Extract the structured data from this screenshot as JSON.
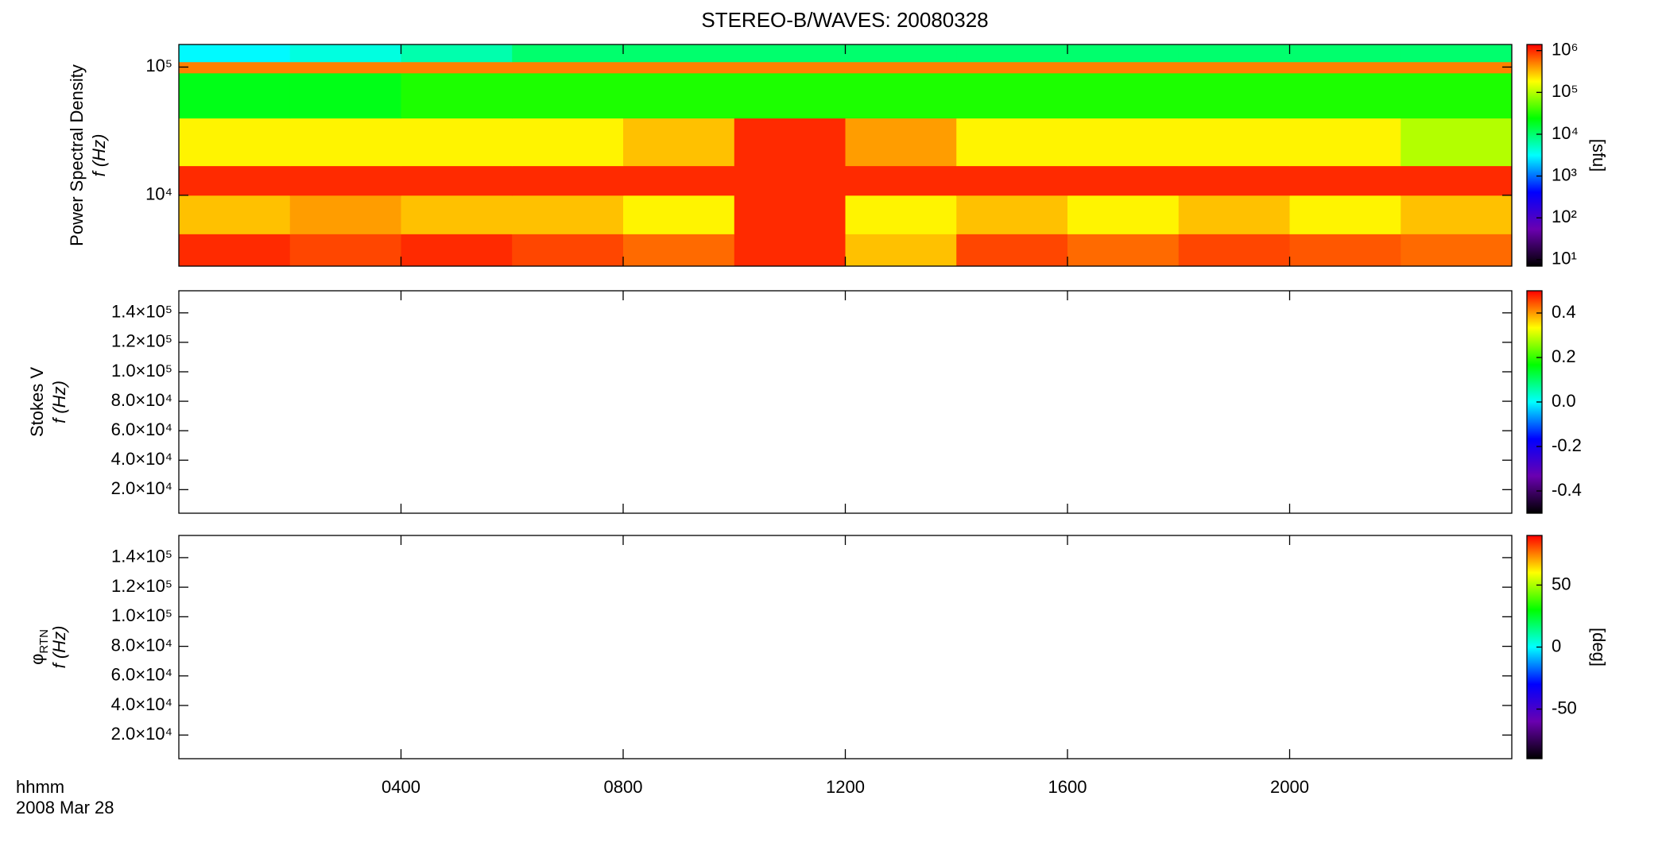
{
  "title": "STEREO-B/WAVES: 20080328",
  "time_axis": {
    "label": "hhmm",
    "date": "2008 Mar 28",
    "xlim": [
      0,
      24
    ],
    "xticks": [
      {
        "value": 4,
        "label": "0400"
      },
      {
        "value": 8,
        "label": "0800"
      },
      {
        "value": 12,
        "label": "1200"
      },
      {
        "value": 16,
        "label": "1600"
      },
      {
        "value": 20,
        "label": "2000"
      }
    ]
  },
  "colormap": [
    "#000000",
    "#6a00b0",
    "#0000ff",
    "#00ffff",
    "#00ff00",
    "#ffff00",
    "#ff0000"
  ],
  "chart_data": [
    {
      "type": "spectrogram",
      "ylabel": "Power Spectral Density",
      "ylabel2": "f (Hz)",
      "ylog": true,
      "ylim": [
        2800,
        150000
      ],
      "yticks": [
        {
          "value": 10000,
          "label": "10⁴"
        },
        {
          "value": 100000,
          "label": "10⁵"
        }
      ],
      "x_bins": [
        0,
        2,
        4,
        6,
        8,
        10,
        12,
        14,
        16,
        18,
        20,
        22,
        24
      ],
      "freq_bins": [
        2800,
        5000,
        10000,
        17000,
        40000,
        90000,
        110000,
        150000
      ],
      "values": [
        [
          1000000,
          800000,
          1000000,
          800000,
          600000,
          1000000,
          300000,
          800000,
          600000,
          800000,
          700000,
          600000
        ],
        [
          300000,
          400000,
          300000,
          300000,
          200000,
          1000000,
          200000,
          300000,
          200000,
          300000,
          200000,
          300000
        ],
        [
          1000000,
          1000000,
          1000000,
          1000000,
          1000000,
          1000000,
          1000000,
          1000000,
          1000000,
          1000000,
          1000000,
          1000000
        ],
        [
          200000,
          200000,
          200000,
          200000,
          300000,
          1000000,
          400000,
          200000,
          200000,
          200000,
          200000,
          100000
        ],
        [
          20000,
          20000,
          30000,
          30000,
          30000,
          30000,
          30000,
          30000,
          30000,
          30000,
          30000,
          30000
        ],
        [
          500000,
          500000,
          500000,
          500000,
          500000,
          500000,
          500000,
          500000,
          500000,
          500000,
          500000,
          500000
        ],
        [
          3000,
          4000,
          6000,
          10000,
          10000,
          10000,
          10000,
          10000,
          10000,
          10000,
          10000,
          10000
        ]
      ],
      "colorbar": {
        "label": "[sfu]",
        "log": true,
        "lim": [
          7,
          1400000
        ],
        "ticks": [
          {
            "value": 10,
            "label": "10¹"
          },
          {
            "value": 100,
            "label": "10²"
          },
          {
            "value": 1000,
            "label": "10³"
          },
          {
            "value": 10000,
            "label": "10⁴"
          },
          {
            "value": 100000,
            "label": "10⁵"
          },
          {
            "value": 1000000,
            "label": "10⁶"
          }
        ]
      }
    },
    {
      "type": "spectrogram",
      "ylabel": "Stokes V",
      "ylabel2": "f (Hz)",
      "ylim": [
        4000,
        155000
      ],
      "yticks": [
        {
          "value": 20000,
          "label": "2.0×10⁴"
        },
        {
          "value": 40000,
          "label": "4.0×10⁴"
        },
        {
          "value": 60000,
          "label": "6.0×10⁴"
        },
        {
          "value": 80000,
          "label": "8.0×10⁴"
        },
        {
          "value": 100000,
          "label": "1.0×10⁵"
        },
        {
          "value": 120000,
          "label": "1.2×10⁵"
        },
        {
          "value": 140000,
          "label": "1.4×10⁵"
        }
      ],
      "colorbar": {
        "lim": [
          -0.5,
          0.5
        ],
        "ticks": [
          -0.4,
          -0.2,
          {
            "value": 0,
            "label": "0.0"
          },
          0.2,
          0.4
        ]
      }
    },
    {
      "type": "spectrogram",
      "ylabel": "φ",
      "ylabel_sub": "RTN",
      "ylabel2": "f (Hz)",
      "ylim": [
        4000,
        155000
      ],
      "yticks": [
        {
          "value": 20000,
          "label": "2.0×10⁴"
        },
        {
          "value": 40000,
          "label": "4.0×10⁴"
        },
        {
          "value": 60000,
          "label": "6.0×10⁴"
        },
        {
          "value": 80000,
          "label": "8.0×10⁴"
        },
        {
          "value": 100000,
          "label": "1.0×10⁵"
        },
        {
          "value": 120000,
          "label": "1.2×10⁵"
        },
        {
          "value": 140000,
          "label": "1.4×10⁵"
        }
      ],
      "colorbar": {
        "label": "[deg]",
        "lim": [
          -90,
          90
        ],
        "ticks": [
          -50,
          0,
          50
        ]
      }
    }
  ]
}
